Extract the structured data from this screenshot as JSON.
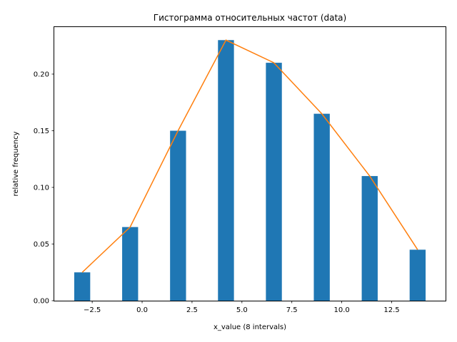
{
  "chart_data": {
    "type": "bar",
    "title": "Гистограмма относительных частот (data)",
    "xlabel": "x_value (8 intervals)",
    "ylabel": "relative frequency",
    "xlim": [
      -4.4,
      15.2
    ],
    "ylim": [
      0,
      0.2415
    ],
    "x_ticks": [
      -2.5,
      0.0,
      2.5,
      5.0,
      7.5,
      10.0,
      12.5
    ],
    "x_tick_labels": [
      "−2.5",
      "0.0",
      "2.5",
      "5.0",
      "7.5",
      "10.0",
      "12.5"
    ],
    "y_ticks": [
      0.0,
      0.05,
      0.1,
      0.15,
      0.2
    ],
    "y_tick_labels": [
      "0.00",
      "0.05",
      "0.10",
      "0.15",
      "0.20"
    ],
    "bar_width": 0.8,
    "grid": false,
    "series": [
      {
        "type": "bar",
        "color": "#1f77b4",
        "x": [
          -3.0,
          -0.6,
          1.8,
          4.2,
          6.6,
          9.0,
          11.4,
          13.8
        ],
        "values": [
          0.025,
          0.065,
          0.15,
          0.23,
          0.21,
          0.165,
          0.11,
          0.045
        ]
      },
      {
        "type": "line",
        "color": "#ff7f0e",
        "x": [
          -3.0,
          -0.6,
          1.8,
          4.2,
          6.6,
          9.0,
          11.4,
          13.8
        ],
        "values": [
          0.025,
          0.065,
          0.15,
          0.23,
          0.21,
          0.165,
          0.11,
          0.045
        ]
      }
    ]
  }
}
